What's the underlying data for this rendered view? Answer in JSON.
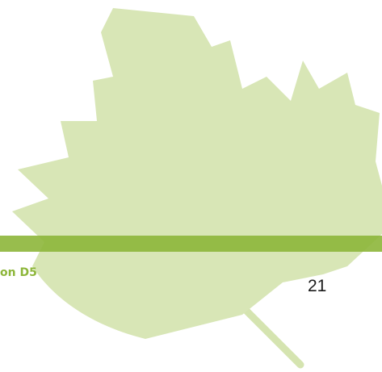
{
  "footer": {
    "section": "on D5",
    "page_number": 21
  }
}
